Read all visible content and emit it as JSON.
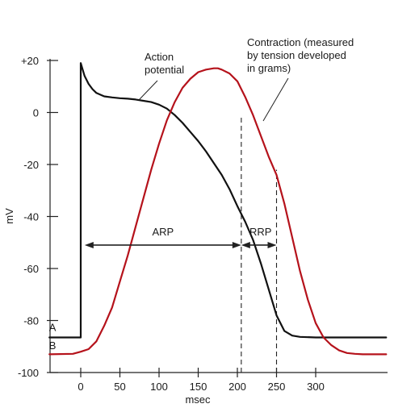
{
  "chart_data": {
    "type": "line",
    "ylabel": "mV",
    "xlabel": "msec",
    "xlim": [
      -40,
      390
    ],
    "ylim": [
      -100,
      20
    ],
    "x_ticks": [
      0,
      50,
      100,
      150,
      200,
      250,
      300
    ],
    "x_tick_labels": [
      "0",
      "50",
      "100",
      "150",
      "200",
      "250",
      "300"
    ],
    "y_ticks": [
      20,
      0,
      -20,
      -40,
      -60,
      -80,
      -100
    ],
    "y_tick_labels": [
      "+20",
      "0",
      "-20",
      "-40",
      "-60",
      "-80",
      "-100"
    ],
    "grid": false,
    "series": [
      {
        "name": "Action potential",
        "color": "#111111",
        "x": [
          -40,
          0,
          0,
          0,
          2,
          5,
          10,
          15,
          20,
          30,
          40,
          50,
          60,
          70,
          80,
          90,
          100,
          110,
          120,
          130,
          140,
          150,
          160,
          170,
          180,
          190,
          200,
          210,
          220,
          230,
          240,
          250,
          260,
          270,
          280,
          300,
          350,
          390
        ],
        "y": [
          -86.5,
          -86.5,
          -86.5,
          19,
          17,
          14,
          11,
          9,
          7.5,
          6.2,
          5.8,
          5.5,
          5.3,
          5,
          4.5,
          4,
          3,
          1.5,
          -1,
          -4,
          -7.5,
          -11,
          -15,
          -19.5,
          -24,
          -29.5,
          -36,
          -42,
          -49,
          -58,
          -68,
          -78,
          -84,
          -85.8,
          -86.3,
          -86.5,
          -86.5,
          -86.5
        ]
      },
      {
        "name": "Contraction (measured by tension developed in grams)",
        "color": "#b5121b",
        "x": [
          -40,
          -10,
          0,
          10,
          20,
          30,
          40,
          50,
          60,
          70,
          80,
          90,
          100,
          110,
          120,
          130,
          140,
          150,
          160,
          170,
          175,
          180,
          190,
          200,
          210,
          220,
          230,
          240,
          250,
          260,
          270,
          280,
          290,
          300,
          310,
          320,
          330,
          340,
          350,
          360,
          370,
          390
        ],
        "y": [
          -93,
          -92.8,
          -92,
          -91,
          -88,
          -82,
          -75,
          -65,
          -55,
          -44,
          -33,
          -22,
          -12,
          -3,
          4,
          9.5,
          13,
          15.5,
          16.5,
          17,
          17,
          16.5,
          15,
          12,
          6,
          -1,
          -9,
          -17,
          -24,
          -35,
          -48,
          -61,
          -72,
          -81,
          -86.5,
          -89.5,
          -91.5,
          -92.5,
          -92.8,
          -93,
          -93,
          -93
        ]
      }
    ],
    "markers": [
      {
        "label": "A",
        "x": -36,
        "y": -84
      },
      {
        "label": "B",
        "x": -36,
        "y": -91
      }
    ],
    "verticals": [
      {
        "x": 205,
        "from": -100,
        "to": -1
      },
      {
        "x": 250,
        "from": -100,
        "to": -22
      }
    ],
    "intervals": [
      {
        "label": "ARP",
        "x_start": 5,
        "x_end": 205,
        "y": -51
      },
      {
        "label": "RRP",
        "x_start": 205,
        "x_end": 250,
        "y": -51
      }
    ],
    "annotations": [
      {
        "lines": [
          "Action",
          "potential"
        ]
      },
      {
        "lines": [
          "Contraction (measured",
          "by tension developed",
          "in grams)"
        ]
      }
    ]
  }
}
